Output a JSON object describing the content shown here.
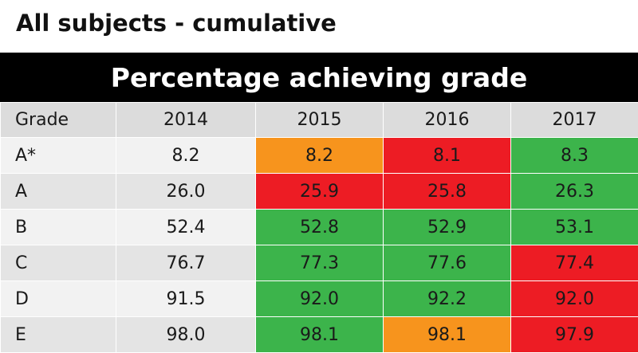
{
  "title": "All subjects - cumulative",
  "banner": "Percentage achieving grade",
  "colors": {
    "green": "#3cb44b",
    "red": "#ed1c24",
    "orange": "#f7941d"
  },
  "chart_data": {
    "type": "table",
    "columns": [
      "Grade",
      "2014",
      "2015",
      "2016",
      "2017"
    ],
    "rows": [
      {
        "grade": "A*",
        "values": [
          "8.2",
          "8.2",
          "8.1",
          "8.3"
        ],
        "status": [
          null,
          "orange",
          "red",
          "green"
        ]
      },
      {
        "grade": "A",
        "values": [
          "26.0",
          "25.9",
          "25.8",
          "26.3"
        ],
        "status": [
          null,
          "red",
          "red",
          "green"
        ]
      },
      {
        "grade": "B",
        "values": [
          "52.4",
          "52.8",
          "52.9",
          "53.1"
        ],
        "status": [
          null,
          "green",
          "green",
          "green"
        ]
      },
      {
        "grade": "C",
        "values": [
          "76.7",
          "77.3",
          "77.6",
          "77.4"
        ],
        "status": [
          null,
          "green",
          "green",
          "red"
        ]
      },
      {
        "grade": "D",
        "values": [
          "91.5",
          "92.0",
          "92.2",
          "92.0"
        ],
        "status": [
          null,
          "green",
          "green",
          "red"
        ]
      },
      {
        "grade": "E",
        "values": [
          "98.0",
          "98.1",
          "98.1",
          "97.9"
        ],
        "status": [
          null,
          "green",
          "orange",
          "red"
        ]
      }
    ]
  }
}
